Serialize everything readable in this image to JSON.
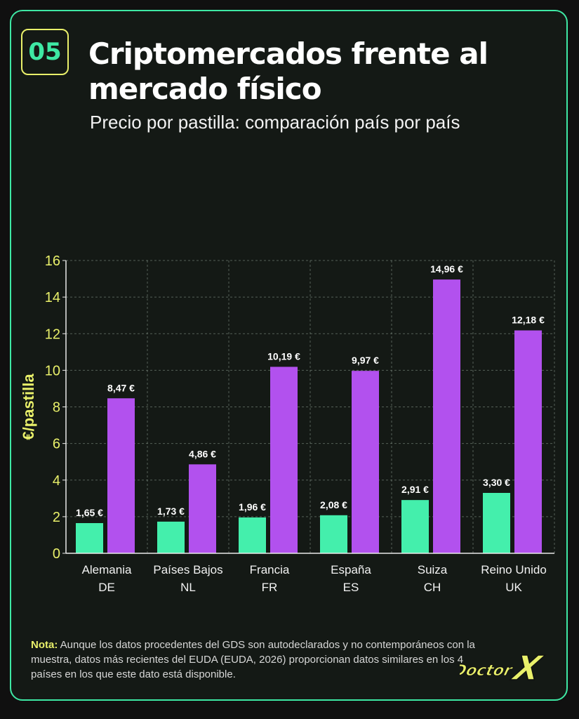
{
  "header": {
    "badge": "05",
    "title": "Criptomercados frente al mercado físico",
    "subtitle": "Precio por pastilla: comparación país por país"
  },
  "note": {
    "label": "Nota:",
    "text": " Aunque los datos procedentes del GDS son autodeclarados y no contemporáneos con la muestra, datos más recientes del EUDA (EUDA, 2026) proporcionan datos similares en los 4 países en los que este dato está disponible."
  },
  "logo": {
    "text": "DOCTOR X",
    "part1": "Doctor",
    "part2": "X"
  },
  "colors": {
    "background": "#141915",
    "accent_green": "#3ee8a4",
    "accent_yellow": "#e9f06a",
    "bar_green": "#44efac",
    "bar_purple": "#b251ee"
  },
  "chart_data": {
    "type": "bar",
    "title": "",
    "xlabel": "",
    "ylabel": "€/pastilla",
    "ylim": [
      0,
      16
    ],
    "yticks": [
      0,
      2,
      4,
      6,
      8,
      10,
      12,
      14,
      16
    ],
    "grid": true,
    "legend": "none",
    "categories": [
      [
        "Alemania",
        "DE"
      ],
      [
        "Países Bajos",
        "NL"
      ],
      [
        "Francia",
        "FR"
      ],
      [
        "España",
        "ES"
      ],
      [
        "Suiza",
        "CH"
      ],
      [
        "Reino Unido",
        "UK"
      ]
    ],
    "series": [
      {
        "color": "#44efac",
        "values": [
          1.65,
          1.73,
          1.96,
          2.08,
          2.91,
          3.3
        ],
        "labels": [
          "1,65 €",
          "1,73 €",
          "1,96 €",
          "2,08 €",
          "2,91 €",
          "3,30 €"
        ]
      },
      {
        "color": "#b251ee",
        "values": [
          8.47,
          4.86,
          10.19,
          9.97,
          14.96,
          12.18
        ],
        "labels": [
          "8,47 €",
          "4,86 €",
          "10,19 €",
          "9,97 €",
          "14,96 €",
          "12,18 €"
        ]
      }
    ]
  }
}
